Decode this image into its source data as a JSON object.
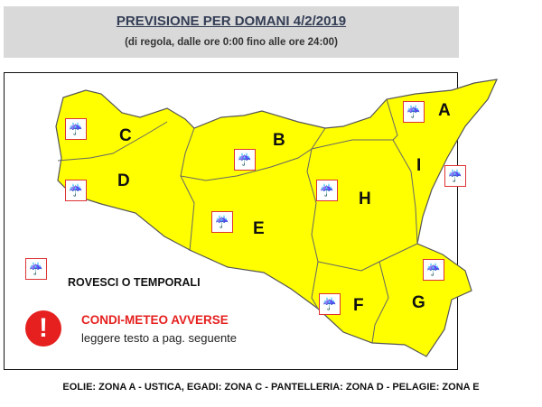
{
  "header": {
    "title": "PREVISIONE PER DOMANI 4/2/2019",
    "subtitle": "(di regola, dalle ore 0:00 fino alle ore 24:00)"
  },
  "map": {
    "fill_color": "#ffff00",
    "zones": [
      "A",
      "B",
      "C",
      "D",
      "E",
      "F",
      "G",
      "H",
      "I"
    ],
    "weather_icon": "thunderstorm-rain-icon",
    "zones_with_icon": [
      "A",
      "B",
      "C",
      "D",
      "E",
      "F",
      "G",
      "H",
      "I"
    ]
  },
  "legend": {
    "storm_label": "ROVESCI O TEMPORALI",
    "warning_title": "CONDI-METEO AVVERSE",
    "warning_text": "leggere testo a pag. seguente",
    "warning_symbol": "!",
    "warning_color": "#e5201f"
  },
  "footer": "EOLIE: ZONA A - USTICA, EGADI: ZONA C - PANTELLERIA: ZONA D - PELAGIE: ZONA E"
}
